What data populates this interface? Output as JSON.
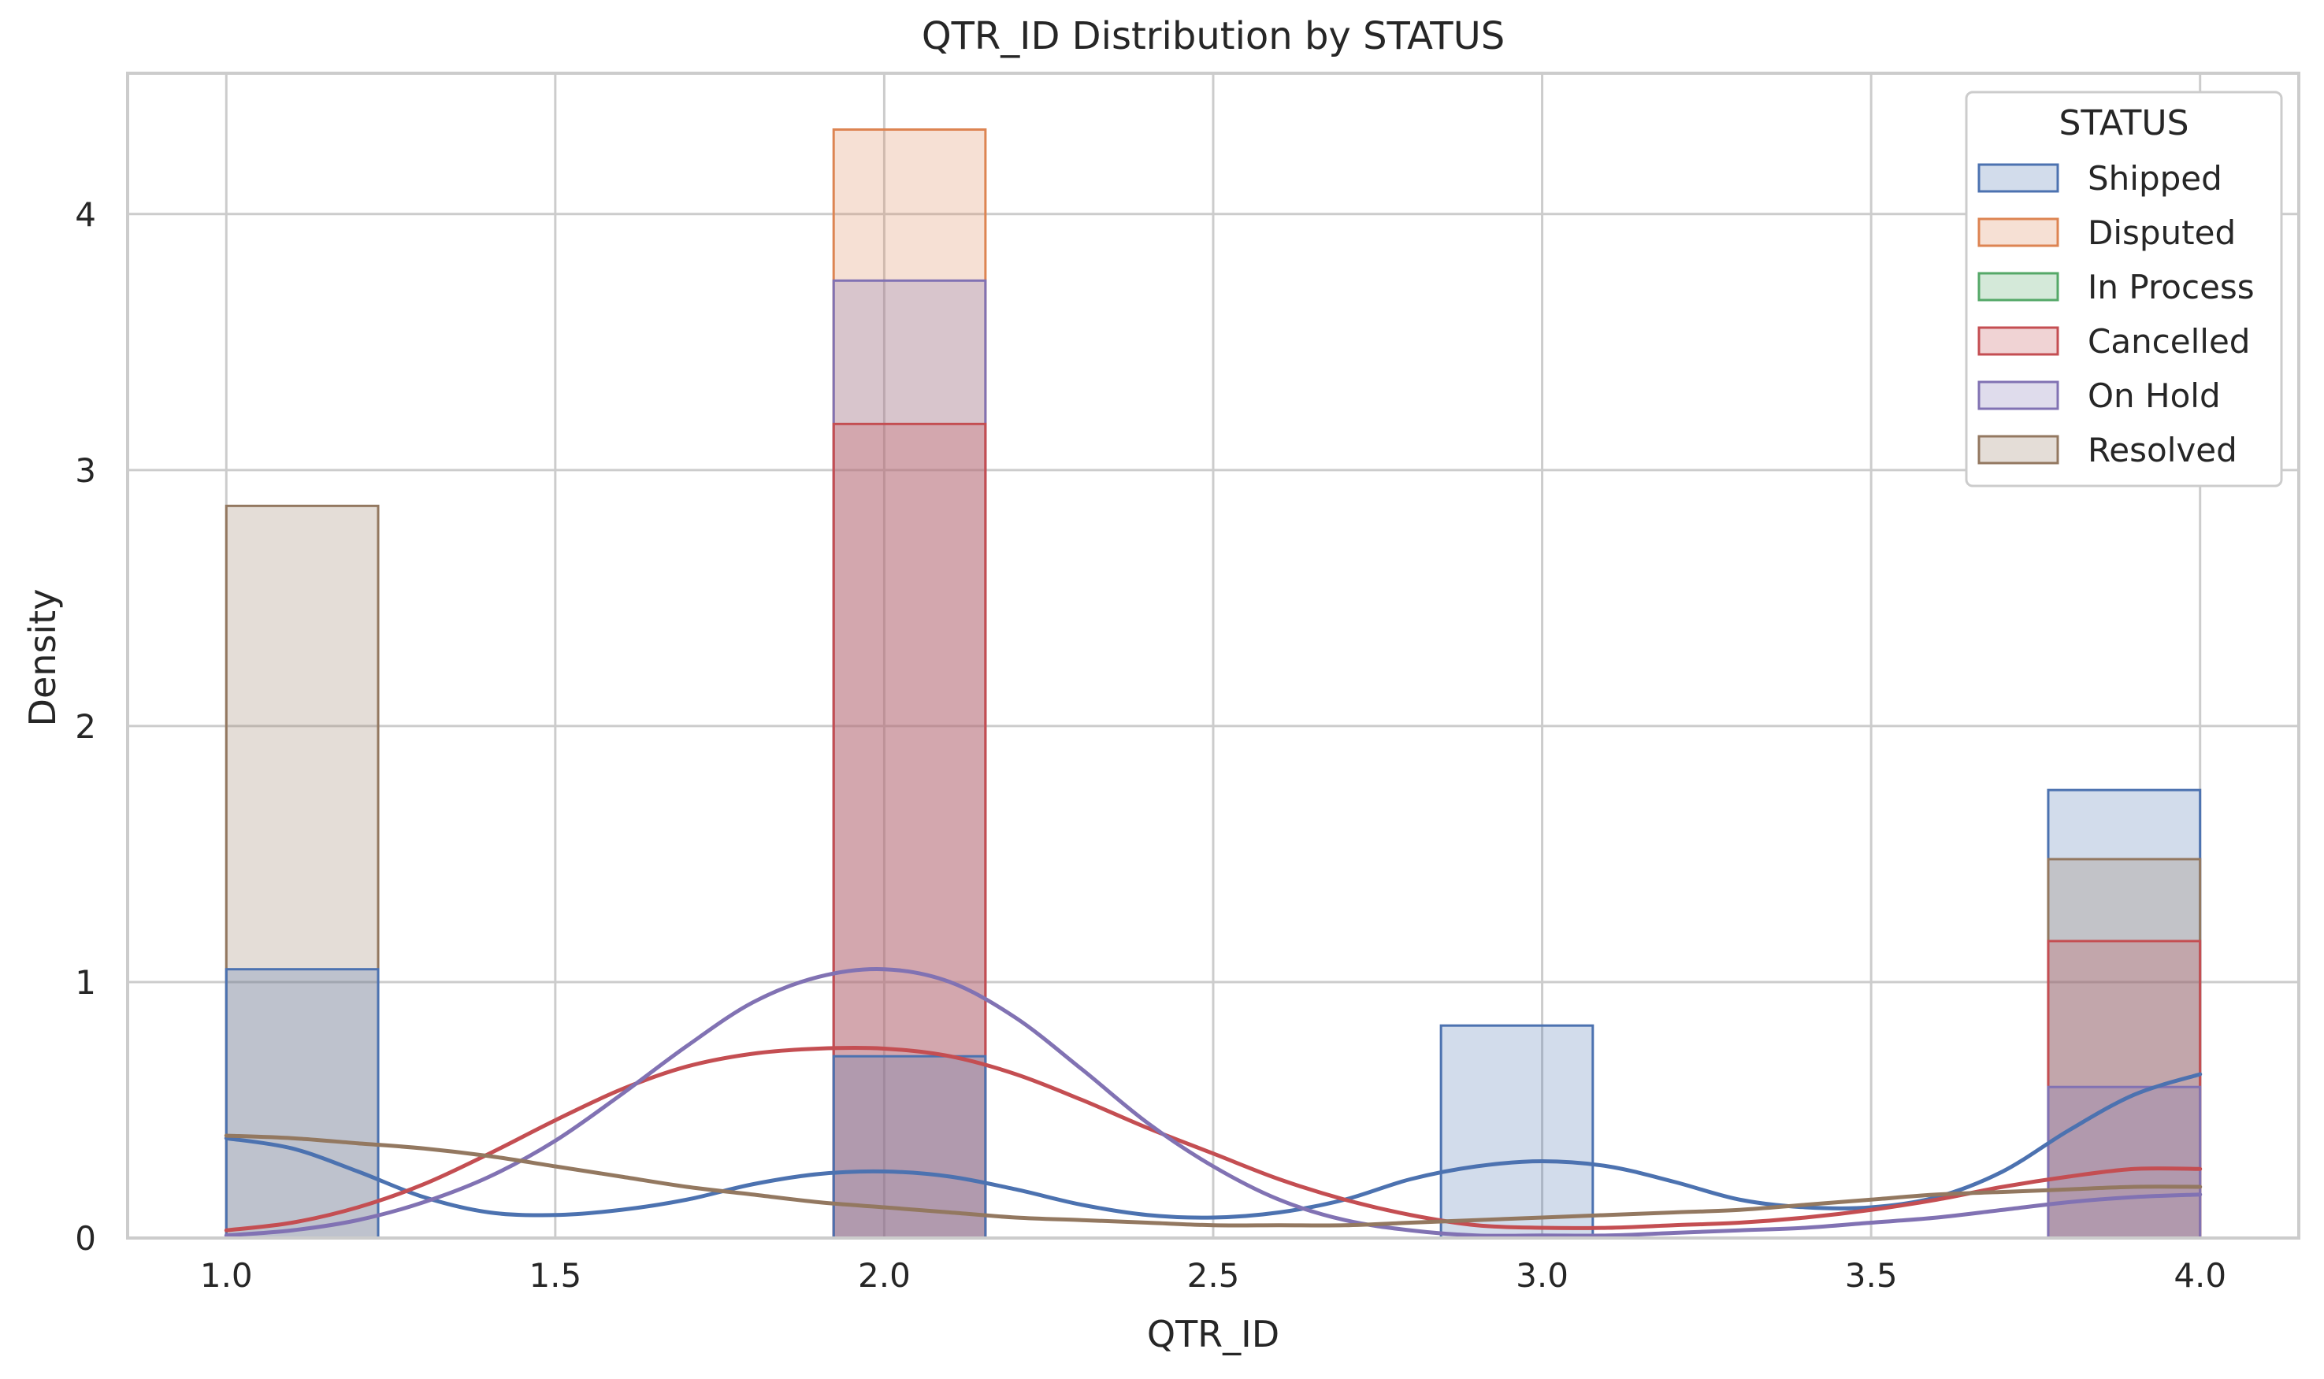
{
  "chart_data": {
    "type": "bar",
    "subtype": "histogram with KDE curves, overlaid layers, density normalized per group",
    "title": "QTR_ID Distribution by STATUS",
    "xlabel": "QTR_ID",
    "ylabel": "Density",
    "xlim": [
      0.85,
      4.15
    ],
    "ylim": [
      0,
      4.55
    ],
    "xticks": [
      1.0,
      1.5,
      2.0,
      2.5,
      3.0,
      3.5,
      4.0
    ],
    "xtick_labels": [
      "1.0",
      "1.5",
      "2.0",
      "2.5",
      "3.0",
      "3.5",
      "4.0"
    ],
    "yticks": [
      0,
      1,
      2,
      3,
      4
    ],
    "ytick_labels": [
      "0",
      "1",
      "2",
      "3",
      "4"
    ],
    "grid": true,
    "bin_edges": [
      1.0,
      1.2308,
      1.9231,
      2.1538,
      2.8462,
      3.0769,
      3.7692,
      4.0
    ],
    "legend": {
      "title": "STATUS",
      "placement": "top-right"
    },
    "series": [
      {
        "name": "Shipped",
        "color": "#4c72b0",
        "bins": [
          {
            "x0": 1.0,
            "x1": 1.2308,
            "density": 1.05
          },
          {
            "x0": 1.9231,
            "x1": 2.1538,
            "density": 0.71
          },
          {
            "x0": 2.8462,
            "x1": 3.0769,
            "density": 0.83
          },
          {
            "x0": 3.7692,
            "x1": 4.0,
            "density": 1.75
          }
        ],
        "kde": {
          "x": [
            1.0,
            1.1,
            1.2,
            1.3,
            1.4,
            1.5,
            1.6,
            1.7,
            1.8,
            1.9,
            2.0,
            2.1,
            2.2,
            2.3,
            2.4,
            2.5,
            2.6,
            2.7,
            2.8,
            2.9,
            3.0,
            3.1,
            3.2,
            3.3,
            3.4,
            3.5,
            3.6,
            3.7,
            3.8,
            3.9,
            4.0
          ],
          "y": [
            0.39,
            0.35,
            0.26,
            0.16,
            0.1,
            0.09,
            0.11,
            0.15,
            0.21,
            0.25,
            0.26,
            0.24,
            0.19,
            0.13,
            0.09,
            0.08,
            0.1,
            0.15,
            0.23,
            0.28,
            0.3,
            0.28,
            0.22,
            0.15,
            0.12,
            0.12,
            0.16,
            0.26,
            0.42,
            0.56,
            0.64
          ]
        }
      },
      {
        "name": "Disputed",
        "color": "#dd8452",
        "bins": [
          {
            "x0": 1.9231,
            "x1": 2.1538,
            "density": 4.33
          }
        ],
        "kde": null
      },
      {
        "name": "In Process",
        "color": "#55a868",
        "bins": [],
        "kde": null
      },
      {
        "name": "Cancelled",
        "color": "#c44e52",
        "bins": [
          {
            "x0": 1.9231,
            "x1": 2.1538,
            "density": 3.18
          },
          {
            "x0": 3.7692,
            "x1": 4.0,
            "density": 1.16
          }
        ],
        "kde": {
          "x": [
            1.0,
            1.1,
            1.2,
            1.3,
            1.4,
            1.5,
            1.6,
            1.7,
            1.8,
            1.9,
            2.0,
            2.1,
            2.2,
            2.3,
            2.4,
            2.5,
            2.6,
            2.7,
            2.8,
            2.9,
            3.0,
            3.1,
            3.2,
            3.3,
            3.4,
            3.5,
            3.6,
            3.7,
            3.8,
            3.9,
            4.0
          ],
          "y": [
            0.03,
            0.06,
            0.12,
            0.21,
            0.33,
            0.46,
            0.58,
            0.67,
            0.72,
            0.74,
            0.74,
            0.71,
            0.64,
            0.54,
            0.43,
            0.33,
            0.23,
            0.15,
            0.09,
            0.05,
            0.04,
            0.04,
            0.05,
            0.06,
            0.08,
            0.11,
            0.15,
            0.2,
            0.24,
            0.27,
            0.27
          ]
        }
      },
      {
        "name": "On Hold",
        "color": "#8172b3",
        "bins": [
          {
            "x0": 1.9231,
            "x1": 2.1538,
            "density": 3.74
          },
          {
            "x0": 3.7692,
            "x1": 4.0,
            "density": 0.59
          }
        ],
        "kde": {
          "x": [
            1.0,
            1.1,
            1.2,
            1.3,
            1.4,
            1.5,
            1.6,
            1.7,
            1.8,
            1.9,
            2.0,
            2.1,
            2.2,
            2.3,
            2.4,
            2.5,
            2.6,
            2.7,
            2.8,
            2.9,
            3.0,
            3.1,
            3.2,
            3.3,
            3.4,
            3.5,
            3.6,
            3.7,
            3.8,
            3.9,
            4.0
          ],
          "y": [
            0.01,
            0.03,
            0.07,
            0.14,
            0.24,
            0.38,
            0.56,
            0.75,
            0.92,
            1.02,
            1.05,
            1.0,
            0.86,
            0.66,
            0.45,
            0.28,
            0.15,
            0.07,
            0.03,
            0.01,
            0.01,
            0.01,
            0.02,
            0.03,
            0.04,
            0.06,
            0.08,
            0.11,
            0.14,
            0.16,
            0.17
          ]
        }
      },
      {
        "name": "Resolved",
        "color": "#937860",
        "bins": [
          {
            "x0": 1.0,
            "x1": 1.2308,
            "density": 2.86
          },
          {
            "x0": 3.7692,
            "x1": 4.0,
            "density": 1.48
          }
        ],
        "kde": {
          "x": [
            1.0,
            1.1,
            1.2,
            1.3,
            1.4,
            1.5,
            1.6,
            1.7,
            1.8,
            1.9,
            2.0,
            2.1,
            2.2,
            2.3,
            2.4,
            2.5,
            2.6,
            2.7,
            2.8,
            2.9,
            3.0,
            3.1,
            3.2,
            3.3,
            3.4,
            3.5,
            3.6,
            3.7,
            3.8,
            3.9,
            4.0
          ],
          "y": [
            0.4,
            0.39,
            0.37,
            0.35,
            0.32,
            0.28,
            0.24,
            0.2,
            0.17,
            0.14,
            0.12,
            0.1,
            0.08,
            0.07,
            0.06,
            0.05,
            0.05,
            0.05,
            0.06,
            0.07,
            0.08,
            0.09,
            0.1,
            0.11,
            0.13,
            0.15,
            0.17,
            0.18,
            0.19,
            0.2,
            0.2
          ]
        }
      }
    ]
  }
}
